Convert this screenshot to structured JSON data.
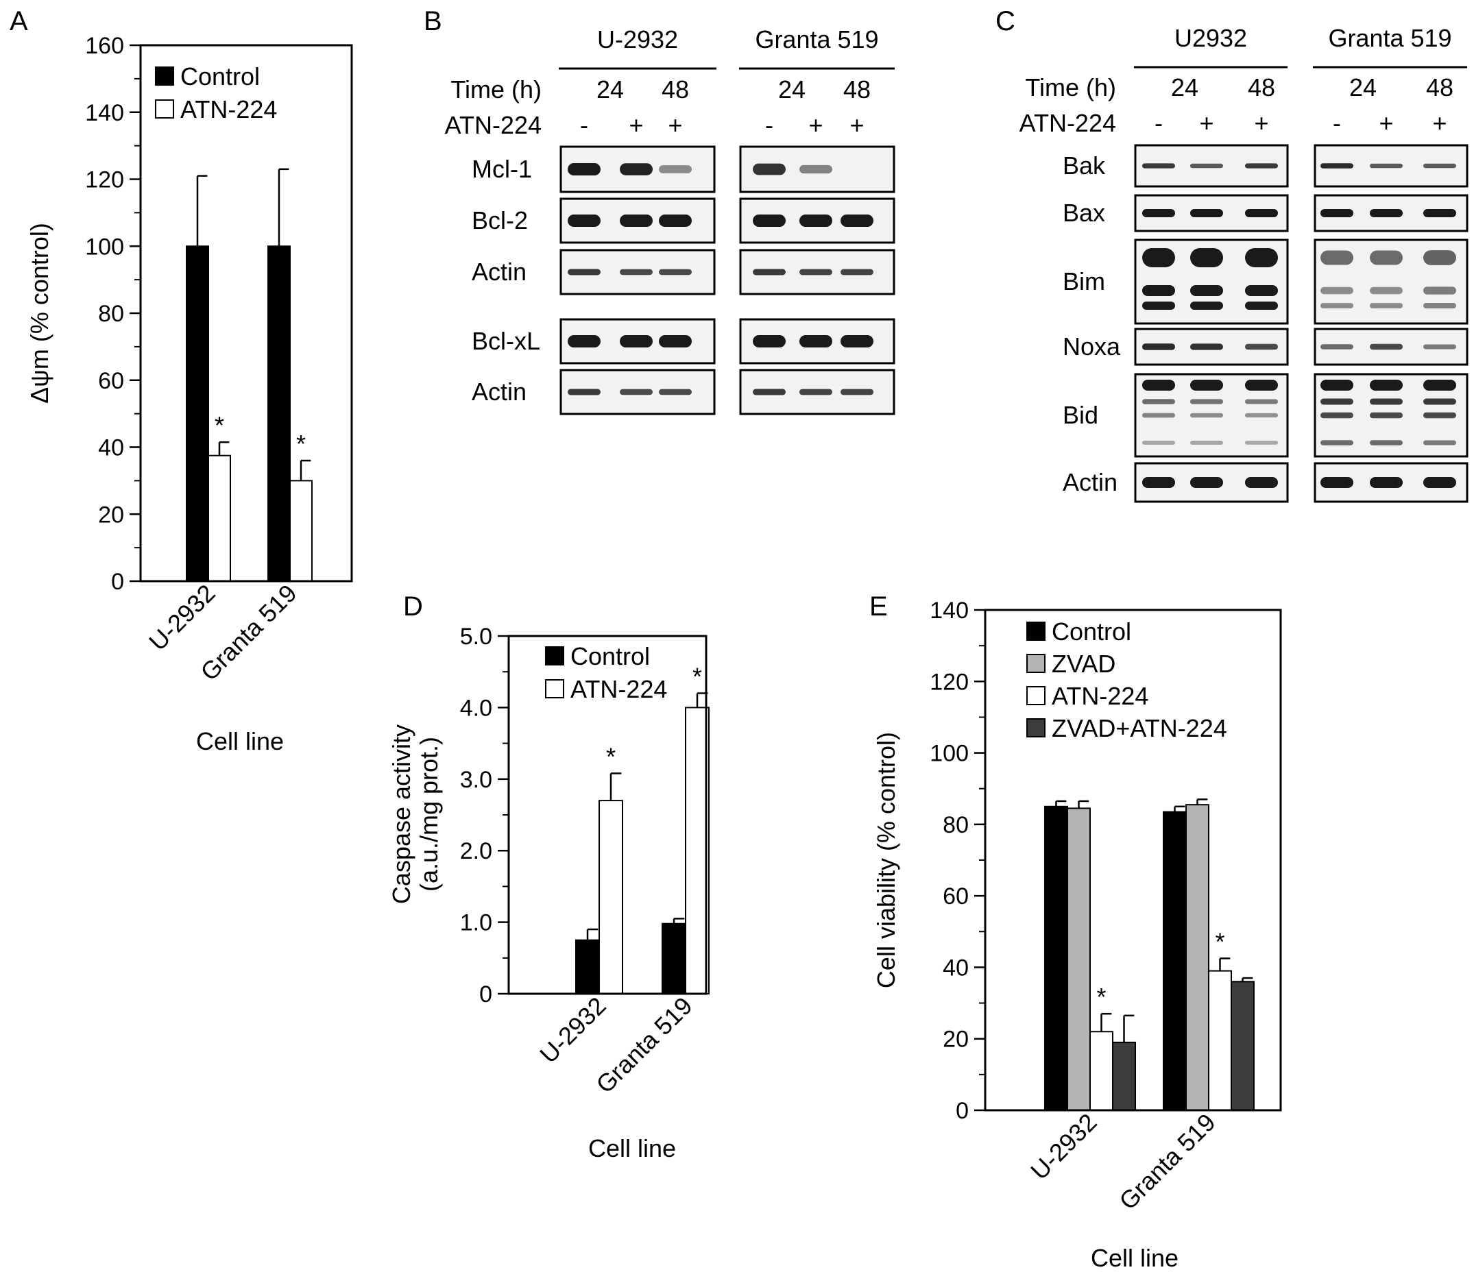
{
  "colors": {
    "control": "#000000",
    "zvad": "#b4b4b4",
    "atn": "#ffffff",
    "combo": "#3c3c3c",
    "band": "#1a1a1a",
    "blot_bg": "#f2f2f2"
  },
  "panels": {
    "A": {
      "letter": "A"
    },
    "B": {
      "letter": "B",
      "groups": [
        "U-2932",
        "Granta 519"
      ],
      "time_label": "Time (h)",
      "drug_label": "ATN-224",
      "times": [
        "24",
        "48",
        "24",
        "48"
      ],
      "treat": [
        "-",
        "+",
        "+",
        "-",
        "+",
        "+"
      ],
      "rows": [
        "Mcl-1",
        "Bcl-2",
        "Actin",
        "Bcl-xL",
        "Actin"
      ]
    },
    "C": {
      "letter": "C",
      "groups": [
        "U2932",
        "Granta 519"
      ],
      "time_label": "Time (h)",
      "drug_label": "ATN-224",
      "times": [
        "24",
        "48",
        "24",
        "48"
      ],
      "treat": [
        "-",
        "+",
        "+",
        "-",
        "+",
        "+"
      ],
      "rows": [
        "Bak",
        "Bax",
        "Bim",
        "Noxa",
        "Bid",
        "Actin"
      ]
    },
    "D": {
      "letter": "D"
    },
    "E": {
      "letter": "E"
    }
  },
  "chart_data": [
    {
      "panel": "A",
      "type": "bar",
      "categories": [
        "U-2932",
        "Granta 519"
      ],
      "series": [
        {
          "name": "Control",
          "values": [
            100,
            100
          ],
          "errors": [
            21,
            23
          ]
        },
        {
          "name": "ATN-224",
          "values": [
            37.5,
            30
          ],
          "errors": [
            4,
            6
          ]
        }
      ],
      "significance": [
        "*",
        "*"
      ],
      "xlabel": "Cell line",
      "ylabel": "Δψm (% control)",
      "ylim": [
        0,
        160
      ],
      "yticks": [
        "0",
        "20",
        "40",
        "60",
        "80",
        "100",
        "120",
        "140",
        "160"
      ],
      "legend_position": "top-left"
    },
    {
      "panel": "D",
      "type": "bar",
      "categories": [
        "U-2932",
        "Granta 519"
      ],
      "series": [
        {
          "name": "Control",
          "values": [
            0.75,
            0.98
          ],
          "errors": [
            0.15,
            0.07
          ]
        },
        {
          "name": "ATN-224",
          "values": [
            2.7,
            4.0
          ],
          "errors": [
            0.38,
            0.2
          ]
        }
      ],
      "significance": [
        "*",
        "*"
      ],
      "xlabel": "Cell line",
      "ylabel_line1": "Caspase activity",
      "ylabel_line2": "(a.u./mg prot.)",
      "ylim": [
        0,
        5
      ],
      "yticks": [
        "0",
        "1.0",
        "2.0",
        "3.0",
        "4.0",
        "5.0"
      ],
      "legend_position": "top-left"
    },
    {
      "panel": "E",
      "type": "bar",
      "categories": [
        "U-2932",
        "Granta 519"
      ],
      "series": [
        {
          "name": "Control",
          "values": [
            85,
            83.5
          ],
          "errors": [
            1.5,
            1.5
          ]
        },
        {
          "name": "ZVAD",
          "values": [
            84.5,
            85.5
          ],
          "errors": [
            2,
            1.5
          ]
        },
        {
          "name": "ATN-224",
          "values": [
            22,
            39
          ],
          "errors": [
            5,
            3.5
          ]
        },
        {
          "name": "ZVAD+ATN-224",
          "values": [
            19,
            36
          ],
          "errors": [
            7.5,
            1
          ]
        }
      ],
      "significance": [
        "*",
        "*"
      ],
      "xlabel": "Cell line",
      "ylabel": "Cell viability (% control)",
      "ylim": [
        0,
        140
      ],
      "yticks": [
        "0",
        "20",
        "40",
        "60",
        "80",
        "100",
        "120",
        "140"
      ],
      "legend_position": "top-left"
    }
  ]
}
